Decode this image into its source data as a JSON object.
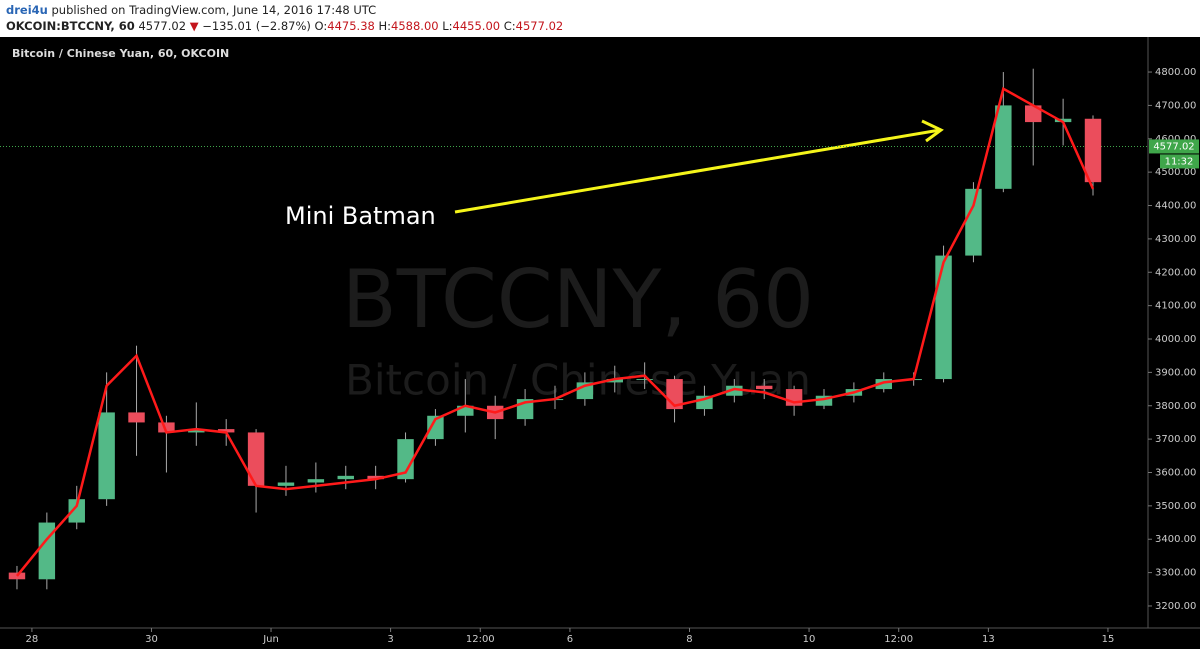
{
  "header": {
    "user": "drei4u",
    "published": "published on TradingView.com, June 14, 2016 17:48 UTC",
    "symbol": "OKCOIN:BTCCNY, 60",
    "last": "4577.02",
    "arrow": "▼",
    "change": "−135.01 (−2.87%)",
    "open_label": "O:",
    "open": "4475.38",
    "high_label": "H:",
    "high": "4588.00",
    "low_label": "L:",
    "low": "4455.00",
    "close_label": "C:",
    "close": "4577.02"
  },
  "chart_data": {
    "type": "candlestick",
    "title": "Bitcoin / Chinese Yuan, 60, OKCOIN",
    "watermark": "BTCCNY, 60",
    "watermark_sub": "Bitcoin / Chinese Yuan",
    "annotation": "Mini Batman",
    "up_color": "#53b987",
    "down_color": "#eb4d5c",
    "indicator_color": "#ff1a1a",
    "grid": false,
    "last_price": {
      "value": 4577.02,
      "label": "4577.02"
    },
    "countdown": "11:32",
    "xlim": [
      -0.4,
      18.67
    ],
    "ylim": [
      3143,
      4896
    ],
    "xticks": [
      {
        "value": 0,
        "label": "28"
      },
      {
        "value": 2,
        "label": "30"
      },
      {
        "value": 4,
        "label": "Jun"
      },
      {
        "value": 6,
        "label": "3"
      },
      {
        "value": 7.5,
        "label": "12:00"
      },
      {
        "value": 9,
        "label": "6"
      },
      {
        "value": 11,
        "label": "8"
      },
      {
        "value": 13,
        "label": "10"
      },
      {
        "value": 14.5,
        "label": "12:00"
      },
      {
        "value": 16,
        "label": "13"
      },
      {
        "value": 18,
        "label": "15"
      }
    ],
    "yticks": [
      {
        "value": 3200,
        "label": "3200.00"
      },
      {
        "value": 3300,
        "label": "3300.00"
      },
      {
        "value": 3400,
        "label": "3400.00"
      },
      {
        "value": 3500,
        "label": "3500.00"
      },
      {
        "value": 3600,
        "label": "3600.00"
      },
      {
        "value": 3700,
        "label": "3700.00"
      },
      {
        "value": 3800,
        "label": "3800.00"
      },
      {
        "value": 3900,
        "label": "3900.00"
      },
      {
        "value": 4000,
        "label": "4000.00"
      },
      {
        "value": 4100,
        "label": "4100.00"
      },
      {
        "value": 4200,
        "label": "4200.00"
      },
      {
        "value": 4300,
        "label": "4300.00"
      },
      {
        "value": 4400,
        "label": "4400.00"
      },
      {
        "value": 4500,
        "label": "4500.00"
      },
      {
        "value": 4600,
        "label": "4600.00"
      },
      {
        "value": 4700,
        "label": "4700.00"
      },
      {
        "value": 4800,
        "label": "4800.00"
      }
    ],
    "x": [
      -0.25,
      0.25,
      0.75,
      1.25,
      1.75,
      2.25,
      2.75,
      3.25,
      3.75,
      4.25,
      4.75,
      5.25,
      5.75,
      6.25,
      6.75,
      7.25,
      7.75,
      8.25,
      8.75,
      9.25,
      9.75,
      10.25,
      10.75,
      11.25,
      11.75,
      12.25,
      12.75,
      13.25,
      13.75,
      14.25,
      14.75,
      15.25,
      15.75,
      16.25,
      16.75,
      17.25,
      17.75
    ],
    "open": [
      3300,
      3280,
      3450,
      3520,
      3780,
      3750,
      3720,
      3730,
      3720,
      3560,
      3570,
      3580,
      3590,
      3580,
      3700,
      3770,
      3800,
      3760,
      3820,
      3820,
      3870,
      3880,
      3880,
      3790,
      3830,
      3860,
      3850,
      3800,
      3830,
      3850,
      3880,
      3880,
      4250,
      4450,
      4700,
      4650,
      4660
    ],
    "high": [
      3320,
      3480,
      3560,
      3900,
      3980,
      3770,
      3810,
      3760,
      3730,
      3620,
      3630,
      3620,
      3620,
      3720,
      3790,
      3880,
      3830,
      3850,
      3860,
      3900,
      3920,
      3930,
      3890,
      3860,
      3880,
      3880,
      3860,
      3850,
      3870,
      3900,
      3900,
      4280,
      4470,
      4800,
      4810,
      4720,
      4670
    ],
    "low": [
      3250,
      3250,
      3430,
      3500,
      3650,
      3600,
      3680,
      3680,
      3480,
      3530,
      3540,
      3550,
      3550,
      3570,
      3680,
      3720,
      3700,
      3740,
      3790,
      3800,
      3840,
      3850,
      3750,
      3770,
      3810,
      3820,
      3770,
      3790,
      3810,
      3840,
      3860,
      3870,
      4230,
      4440,
      4520,
      4580,
      4430
    ],
    "close": [
      3280,
      3450,
      3520,
      3780,
      3750,
      3720,
      3730,
      3720,
      3560,
      3570,
      3580,
      3590,
      3580,
      3700,
      3770,
      3800,
      3760,
      3820,
      3820,
      3870,
      3880,
      3880,
      3790,
      3830,
      3860,
      3850,
      3800,
      3830,
      3850,
      3880,
      3880,
      4250,
      4450,
      4700,
      4650,
      4660,
      4470
    ],
    "indicator": [
      3290,
      3400,
      3500,
      3860,
      3950,
      3720,
      3730,
      3720,
      3560,
      3550,
      3560,
      3570,
      3580,
      3600,
      3760,
      3800,
      3780,
      3810,
      3820,
      3860,
      3880,
      3890,
      3800,
      3820,
      3850,
      3840,
      3810,
      3820,
      3840,
      3870,
      3880,
      4230,
      4400,
      4750,
      4700,
      4650,
      4450
    ]
  }
}
